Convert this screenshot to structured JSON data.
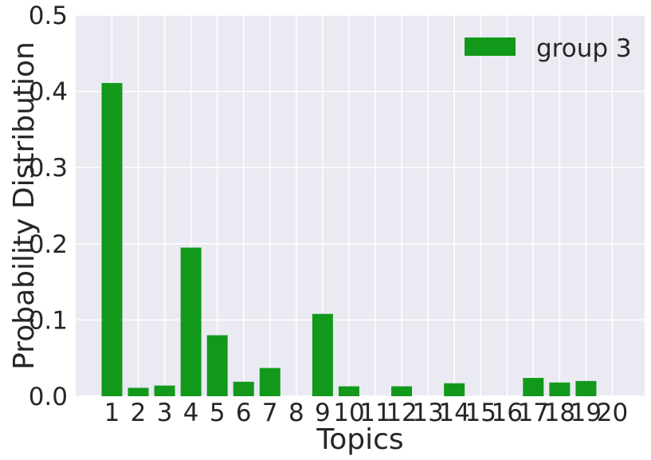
{
  "chart_data": {
    "type": "bar",
    "categories": [
      "1",
      "2",
      "3",
      "4",
      "5",
      "6",
      "7",
      "8",
      "9",
      "10",
      "11",
      "12",
      "13",
      "14",
      "15",
      "16",
      "17",
      "18",
      "19",
      "20"
    ],
    "series": [
      {
        "name": "group 3",
        "color": "#12991b",
        "values": [
          0.411,
          0.011,
          0.014,
          0.195,
          0.08,
          0.019,
          0.037,
          0.0,
          0.108,
          0.013,
          0.0,
          0.013,
          0.0,
          0.017,
          0.0,
          0.0,
          0.024,
          0.018,
          0.02,
          0.0
        ]
      }
    ],
    "xlabel": "Topics",
    "ylabel": "Probability Distribution",
    "ylim": [
      0,
      0.5
    ],
    "yticks": [
      "0.0",
      "0.1",
      "0.2",
      "0.3",
      "0.4",
      "0.5"
    ],
    "grid": true,
    "legend_position": "top-right",
    "background_color": "#eaeaf2",
    "grid_color": "#ffffff"
  }
}
